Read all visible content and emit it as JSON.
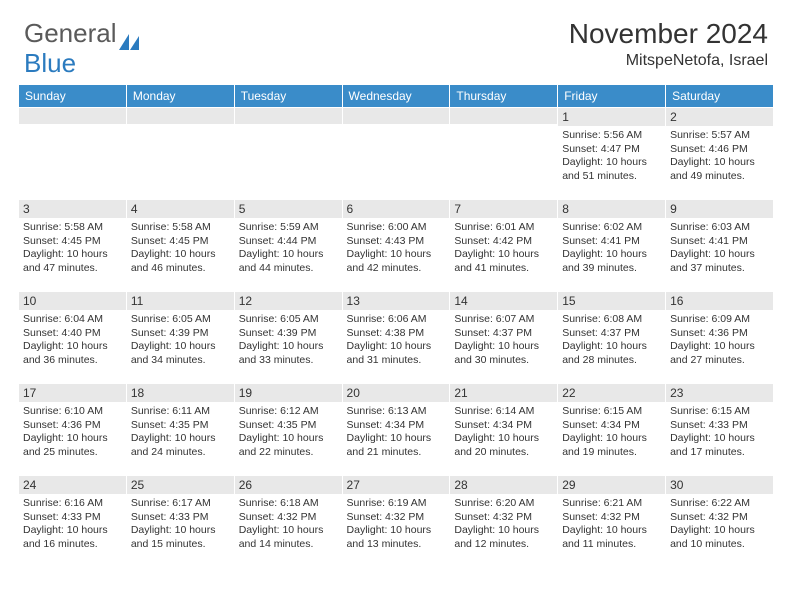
{
  "logo": {
    "part1": "General",
    "part2": "Blue"
  },
  "title": "November 2024",
  "location": "MitspeNetofa, Israel",
  "colors": {
    "header_bg": "#3a8cc9",
    "header_text": "#ffffff",
    "daynum_bg": "#e8e8e8",
    "text": "#333333",
    "logo_gray": "#5a5a5a",
    "logo_blue": "#2b7bbf",
    "page_bg": "#ffffff"
  },
  "fonts": {
    "title_size": 28,
    "location_size": 16,
    "logo_size": 26,
    "weekday_size": 12,
    "daynum_size": 12,
    "body_size": 10.5
  },
  "weekdays": [
    "Sunday",
    "Monday",
    "Tuesday",
    "Wednesday",
    "Thursday",
    "Friday",
    "Saturday"
  ],
  "weeks": [
    [
      {
        "n": "",
        "sr": "",
        "ss": "",
        "dl": ""
      },
      {
        "n": "",
        "sr": "",
        "ss": "",
        "dl": ""
      },
      {
        "n": "",
        "sr": "",
        "ss": "",
        "dl": ""
      },
      {
        "n": "",
        "sr": "",
        "ss": "",
        "dl": ""
      },
      {
        "n": "",
        "sr": "",
        "ss": "",
        "dl": ""
      },
      {
        "n": "1",
        "sr": "Sunrise: 5:56 AM",
        "ss": "Sunset: 4:47 PM",
        "dl": "Daylight: 10 hours and 51 minutes."
      },
      {
        "n": "2",
        "sr": "Sunrise: 5:57 AM",
        "ss": "Sunset: 4:46 PM",
        "dl": "Daylight: 10 hours and 49 minutes."
      }
    ],
    [
      {
        "n": "3",
        "sr": "Sunrise: 5:58 AM",
        "ss": "Sunset: 4:45 PM",
        "dl": "Daylight: 10 hours and 47 minutes."
      },
      {
        "n": "4",
        "sr": "Sunrise: 5:58 AM",
        "ss": "Sunset: 4:45 PM",
        "dl": "Daylight: 10 hours and 46 minutes."
      },
      {
        "n": "5",
        "sr": "Sunrise: 5:59 AM",
        "ss": "Sunset: 4:44 PM",
        "dl": "Daylight: 10 hours and 44 minutes."
      },
      {
        "n": "6",
        "sr": "Sunrise: 6:00 AM",
        "ss": "Sunset: 4:43 PM",
        "dl": "Daylight: 10 hours and 42 minutes."
      },
      {
        "n": "7",
        "sr": "Sunrise: 6:01 AM",
        "ss": "Sunset: 4:42 PM",
        "dl": "Daylight: 10 hours and 41 minutes."
      },
      {
        "n": "8",
        "sr": "Sunrise: 6:02 AM",
        "ss": "Sunset: 4:41 PM",
        "dl": "Daylight: 10 hours and 39 minutes."
      },
      {
        "n": "9",
        "sr": "Sunrise: 6:03 AM",
        "ss": "Sunset: 4:41 PM",
        "dl": "Daylight: 10 hours and 37 minutes."
      }
    ],
    [
      {
        "n": "10",
        "sr": "Sunrise: 6:04 AM",
        "ss": "Sunset: 4:40 PM",
        "dl": "Daylight: 10 hours and 36 minutes."
      },
      {
        "n": "11",
        "sr": "Sunrise: 6:05 AM",
        "ss": "Sunset: 4:39 PM",
        "dl": "Daylight: 10 hours and 34 minutes."
      },
      {
        "n": "12",
        "sr": "Sunrise: 6:05 AM",
        "ss": "Sunset: 4:39 PM",
        "dl": "Daylight: 10 hours and 33 minutes."
      },
      {
        "n": "13",
        "sr": "Sunrise: 6:06 AM",
        "ss": "Sunset: 4:38 PM",
        "dl": "Daylight: 10 hours and 31 minutes."
      },
      {
        "n": "14",
        "sr": "Sunrise: 6:07 AM",
        "ss": "Sunset: 4:37 PM",
        "dl": "Daylight: 10 hours and 30 minutes."
      },
      {
        "n": "15",
        "sr": "Sunrise: 6:08 AM",
        "ss": "Sunset: 4:37 PM",
        "dl": "Daylight: 10 hours and 28 minutes."
      },
      {
        "n": "16",
        "sr": "Sunrise: 6:09 AM",
        "ss": "Sunset: 4:36 PM",
        "dl": "Daylight: 10 hours and 27 minutes."
      }
    ],
    [
      {
        "n": "17",
        "sr": "Sunrise: 6:10 AM",
        "ss": "Sunset: 4:36 PM",
        "dl": "Daylight: 10 hours and 25 minutes."
      },
      {
        "n": "18",
        "sr": "Sunrise: 6:11 AM",
        "ss": "Sunset: 4:35 PM",
        "dl": "Daylight: 10 hours and 24 minutes."
      },
      {
        "n": "19",
        "sr": "Sunrise: 6:12 AM",
        "ss": "Sunset: 4:35 PM",
        "dl": "Daylight: 10 hours and 22 minutes."
      },
      {
        "n": "20",
        "sr": "Sunrise: 6:13 AM",
        "ss": "Sunset: 4:34 PM",
        "dl": "Daylight: 10 hours and 21 minutes."
      },
      {
        "n": "21",
        "sr": "Sunrise: 6:14 AM",
        "ss": "Sunset: 4:34 PM",
        "dl": "Daylight: 10 hours and 20 minutes."
      },
      {
        "n": "22",
        "sr": "Sunrise: 6:15 AM",
        "ss": "Sunset: 4:34 PM",
        "dl": "Daylight: 10 hours and 19 minutes."
      },
      {
        "n": "23",
        "sr": "Sunrise: 6:15 AM",
        "ss": "Sunset: 4:33 PM",
        "dl": "Daylight: 10 hours and 17 minutes."
      }
    ],
    [
      {
        "n": "24",
        "sr": "Sunrise: 6:16 AM",
        "ss": "Sunset: 4:33 PM",
        "dl": "Daylight: 10 hours and 16 minutes."
      },
      {
        "n": "25",
        "sr": "Sunrise: 6:17 AM",
        "ss": "Sunset: 4:33 PM",
        "dl": "Daylight: 10 hours and 15 minutes."
      },
      {
        "n": "26",
        "sr": "Sunrise: 6:18 AM",
        "ss": "Sunset: 4:32 PM",
        "dl": "Daylight: 10 hours and 14 minutes."
      },
      {
        "n": "27",
        "sr": "Sunrise: 6:19 AM",
        "ss": "Sunset: 4:32 PM",
        "dl": "Daylight: 10 hours and 13 minutes."
      },
      {
        "n": "28",
        "sr": "Sunrise: 6:20 AM",
        "ss": "Sunset: 4:32 PM",
        "dl": "Daylight: 10 hours and 12 minutes."
      },
      {
        "n": "29",
        "sr": "Sunrise: 6:21 AM",
        "ss": "Sunset: 4:32 PM",
        "dl": "Daylight: 10 hours and 11 minutes."
      },
      {
        "n": "30",
        "sr": "Sunrise: 6:22 AM",
        "ss": "Sunset: 4:32 PM",
        "dl": "Daylight: 10 hours and 10 minutes."
      }
    ]
  ]
}
